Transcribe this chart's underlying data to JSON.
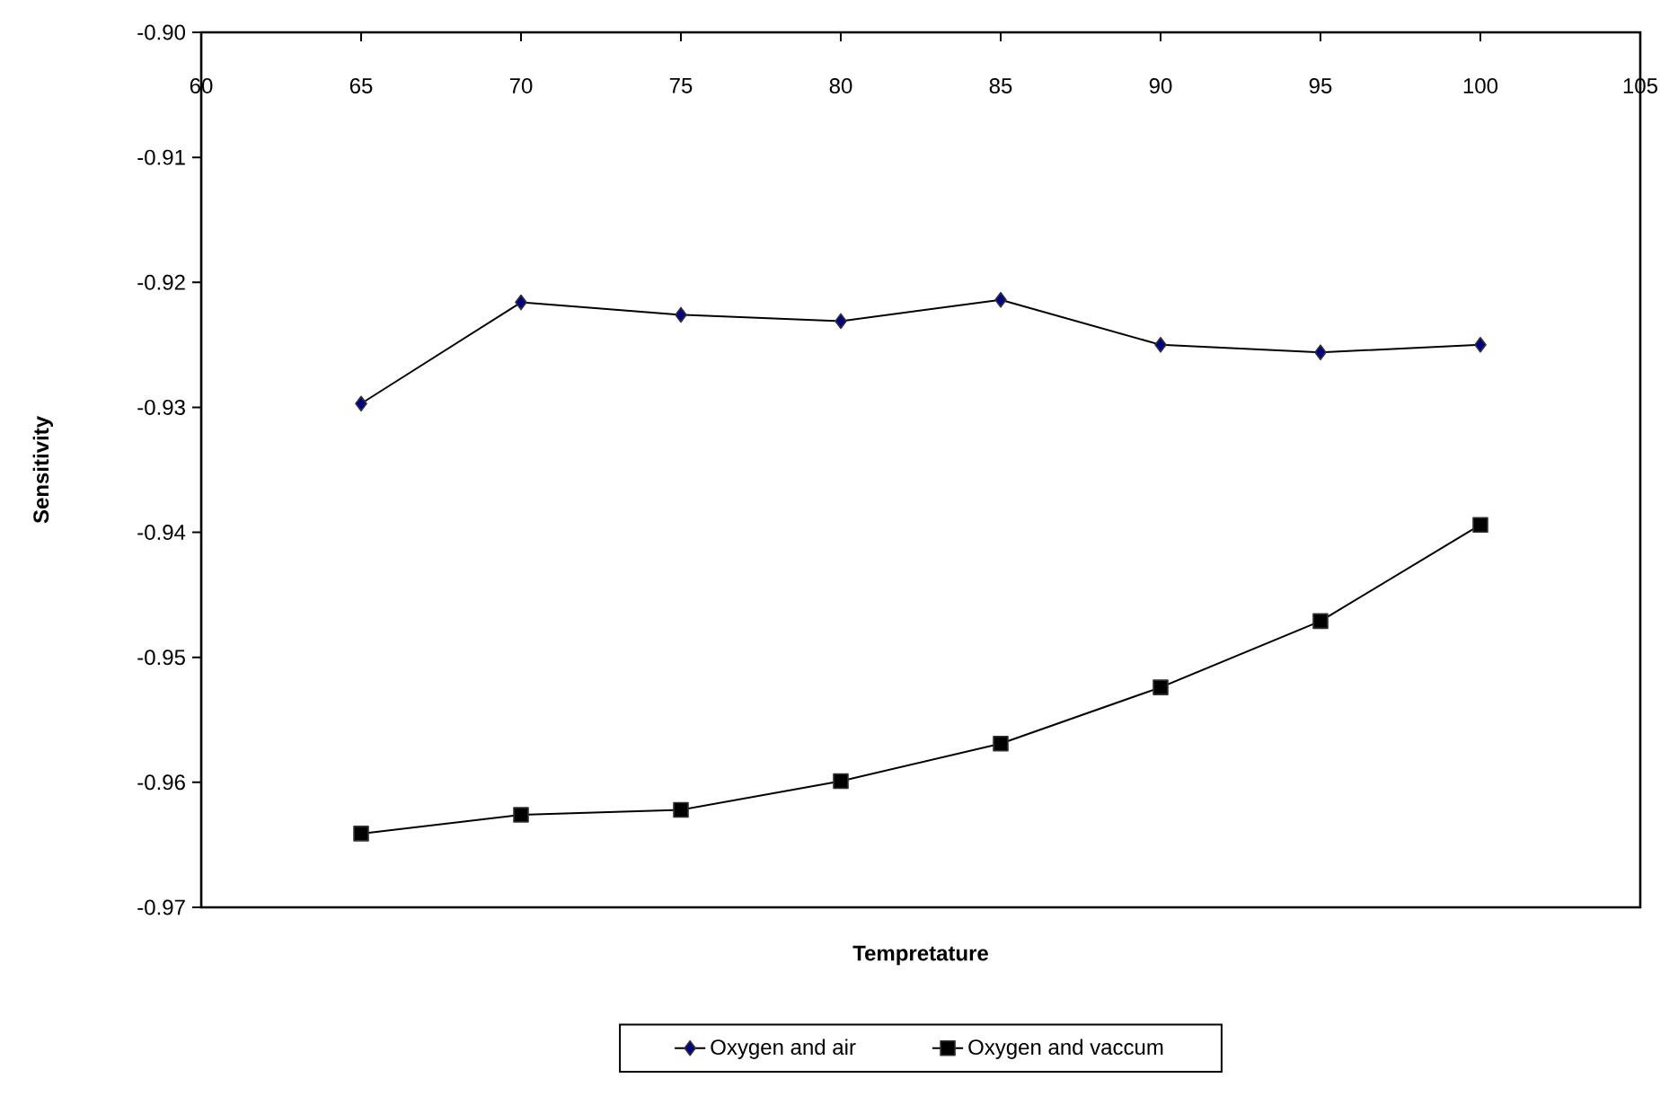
{
  "chart_data": {
    "type": "line",
    "xlabel": "Tempretature",
    "ylabel": "Sensitivity",
    "x": [
      65,
      70,
      75,
      80,
      85,
      90,
      95,
      100
    ],
    "xlim": [
      60,
      105
    ],
    "xticks": [
      60,
      65,
      70,
      75,
      80,
      85,
      90,
      95,
      100,
      105
    ],
    "ylim": [
      -0.97,
      -0.9
    ],
    "yticks": [
      {
        "value": -0.97,
        "label": "-0.97"
      },
      {
        "value": -0.96,
        "label": "-0.96"
      },
      {
        "value": -0.95,
        "label": "-0.95"
      },
      {
        "value": -0.94,
        "label": "-0.94"
      },
      {
        "value": -0.93,
        "label": "-0.93"
      },
      {
        "value": -0.92,
        "label": "-0.92"
      },
      {
        "value": -0.91,
        "label": "-0.91"
      },
      {
        "value": -0.9,
        "label": "-0.90"
      }
    ],
    "legend": "bottom",
    "series": [
      {
        "name": "Oxygen and air",
        "color": "#000080",
        "marker": "diamond",
        "values": [
          -0.9297,
          -0.9216,
          -0.9226,
          -0.9231,
          -0.9214,
          -0.925,
          -0.9256,
          -0.925
        ]
      },
      {
        "name": "Oxygen and vaccum",
        "color": "#000000",
        "marker": "square",
        "values": [
          -0.9641,
          -0.9626,
          -0.9622,
          -0.9599,
          -0.9569,
          -0.9524,
          -0.9471,
          -0.9394
        ]
      }
    ]
  }
}
